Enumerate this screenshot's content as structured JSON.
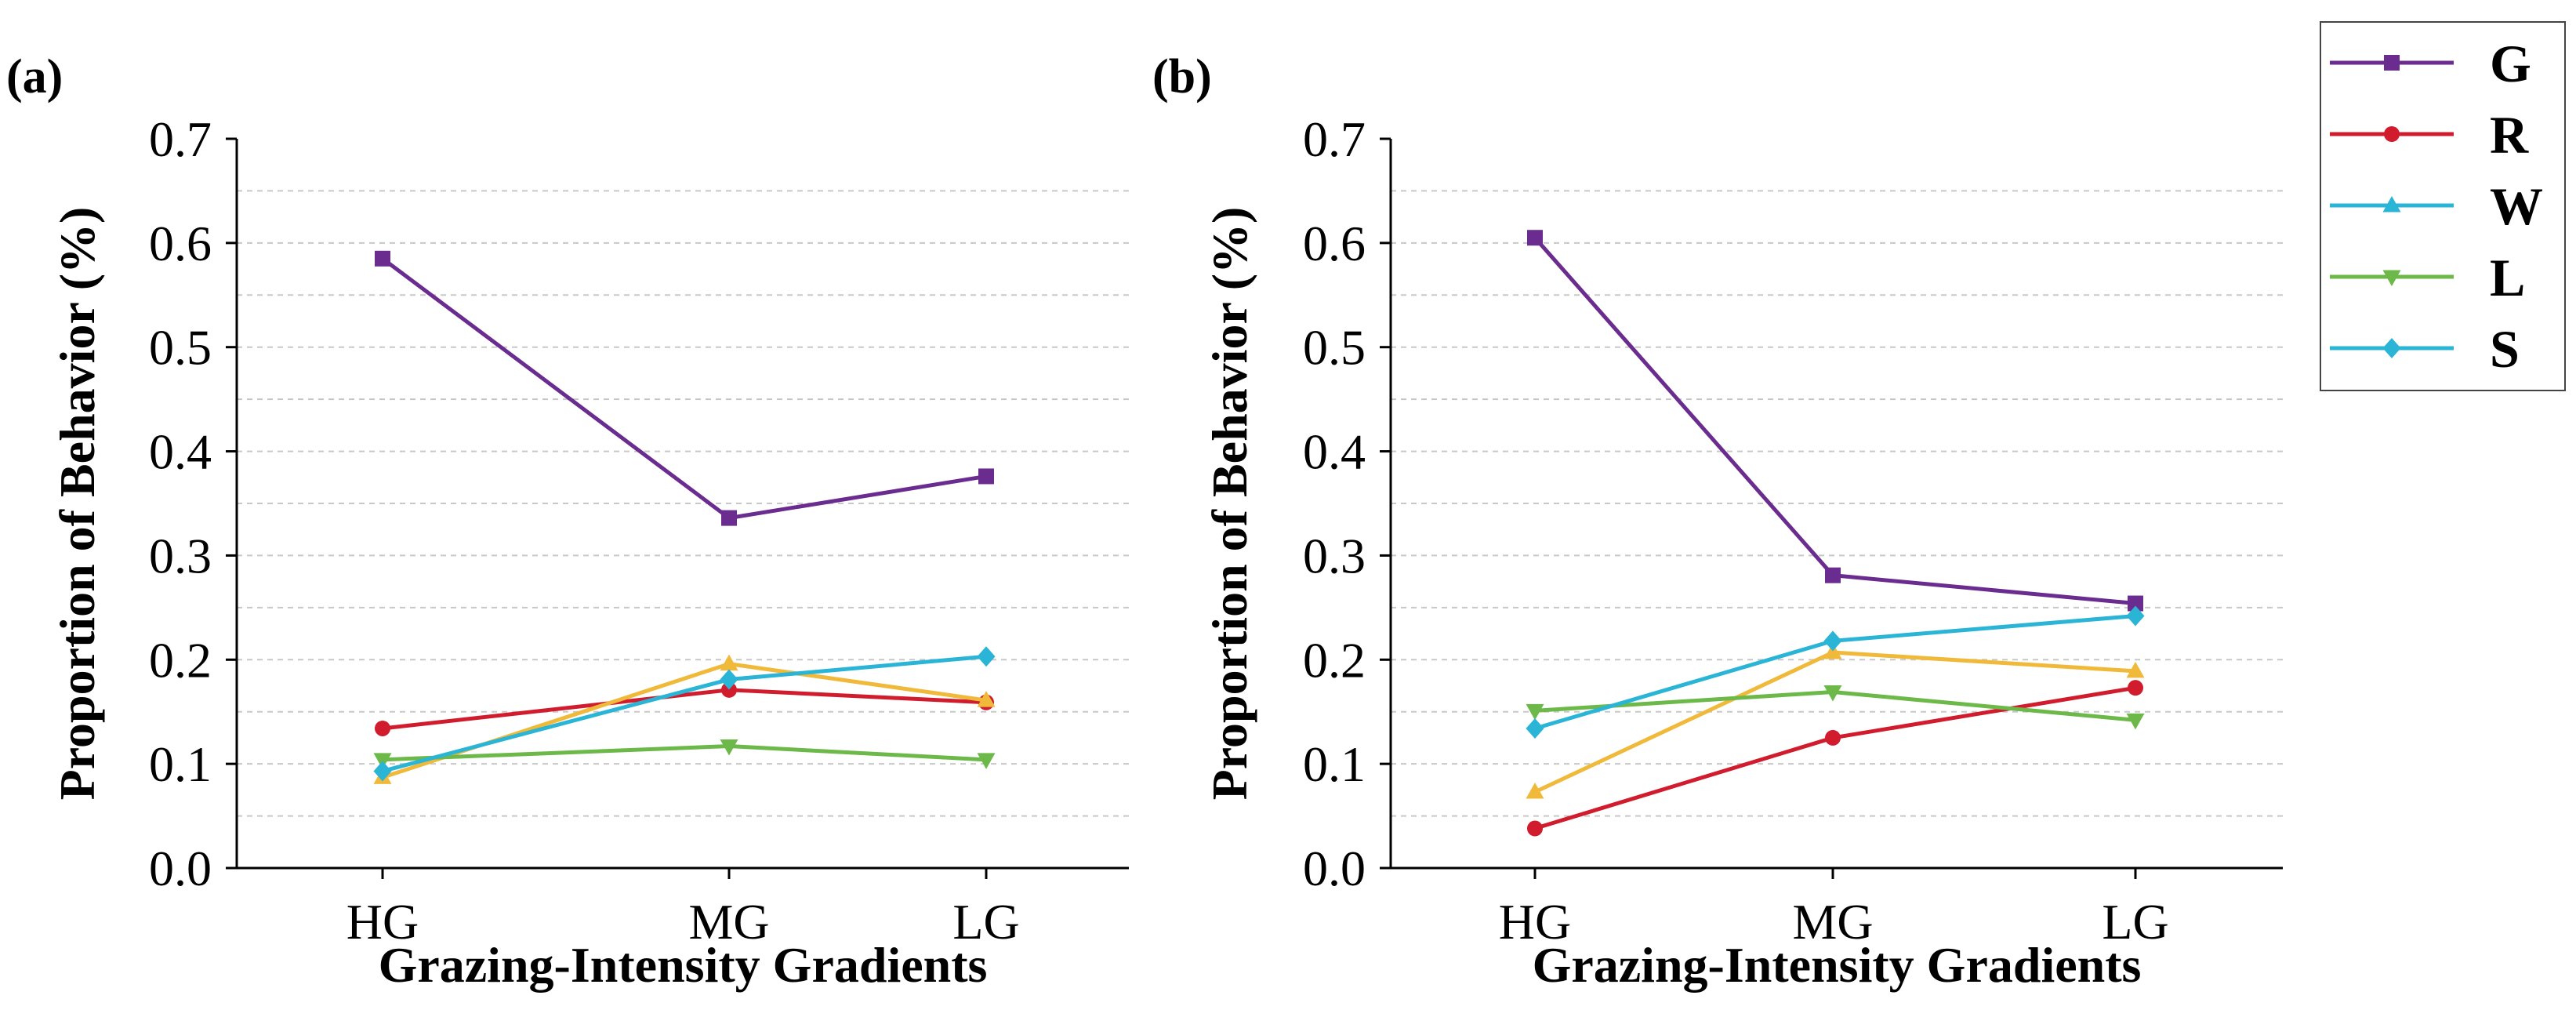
{
  "chart_data": [
    {
      "type": "line",
      "panel": "(a)",
      "title": "",
      "xlabel": "Grazing-Intensity Gradients",
      "ylabel": "Proportion of Behavior (%)",
      "categories": [
        "HG",
        "MG",
        "LG"
      ],
      "ylim": [
        0.0,
        0.7
      ],
      "yticks": [
        "0.0",
        "0.1",
        "0.2",
        "0.3",
        "0.4",
        "0.5",
        "0.6",
        "0.7"
      ],
      "grid": "horizontal dashed",
      "series": [
        {
          "name": "G",
          "values": [
            0.585,
            0.336,
            0.376
          ]
        },
        {
          "name": "R",
          "values": [
            0.134,
            0.171,
            0.159
          ]
        },
        {
          "name": "W",
          "values": [
            0.087,
            0.196,
            0.161
          ]
        },
        {
          "name": "L",
          "values": [
            0.104,
            0.117,
            0.104
          ]
        },
        {
          "name": "S",
          "values": [
            0.093,
            0.181,
            0.203
          ]
        }
      ]
    },
    {
      "type": "line",
      "panel": "(b)",
      "title": "",
      "xlabel": "Grazing-Intensity Gradients",
      "ylabel": "Proportion of Behavior (%)",
      "categories": [
        "HG",
        "MG",
        "LG"
      ],
      "ylim": [
        0.0,
        0.7
      ],
      "yticks": [
        "0.0",
        "0.1",
        "0.2",
        "0.3",
        "0.4",
        "0.5",
        "0.6",
        "0.7"
      ],
      "grid": "horizontal dashed",
      "series": [
        {
          "name": "G",
          "values": [
            0.605,
            0.281,
            0.254
          ]
        },
        {
          "name": "R",
          "values": [
            0.038,
            0.125,
            0.173
          ]
        },
        {
          "name": "W",
          "values": [
            0.073,
            0.207,
            0.189
          ]
        },
        {
          "name": "L",
          "values": [
            0.151,
            0.169,
            0.142
          ]
        },
        {
          "name": "S",
          "values": [
            0.134,
            0.218,
            0.242
          ]
        }
      ]
    }
  ],
  "legend": {
    "placement": "top-right",
    "items": [
      {
        "name": "G",
        "color": "#6a2c8e",
        "marker": "square",
        "display_color": "#6a2c8e"
      },
      {
        "name": "R",
        "color": "#d01c2c",
        "marker": "circle",
        "display_color": "#d01c2c"
      },
      {
        "name": "W",
        "color": "#f0b93a",
        "marker": "triangle-up",
        "display_color": "#2ab4d6"
      },
      {
        "name": "L",
        "color": "#6cb94a",
        "marker": "triangle-down",
        "display_color": "#6cb94a"
      },
      {
        "name": "S",
        "color": "#2ab4d6",
        "marker": "diamond",
        "display_color": "#2ab4d6"
      }
    ]
  }
}
